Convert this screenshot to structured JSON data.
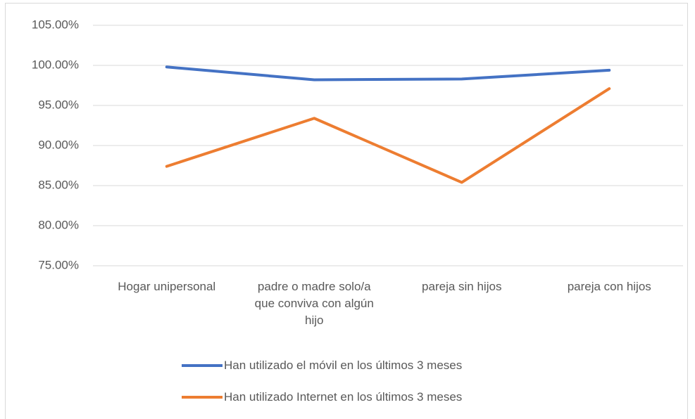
{
  "chart_data": {
    "type": "line",
    "categories": [
      "Hogar unipersonal",
      "padre o madre solo/a que conviva con algún hijo",
      "pareja sin hijos",
      "pareja con hijos"
    ],
    "series": [
      {
        "name": "Han utilizado el móvil en los últimos 3 meses",
        "color": "#4472c4",
        "values": [
          99.8,
          98.2,
          98.3,
          99.4
        ]
      },
      {
        "name": "Han utilizado Internet en los últimos 3 meses",
        "color": "#ed7d31",
        "values": [
          87.4,
          93.4,
          85.4,
          97.1
        ]
      }
    ],
    "ylim": [
      75,
      105
    ],
    "yticks": [
      {
        "value": 75,
        "label": "75.00%"
      },
      {
        "value": 80,
        "label": "80.00%"
      },
      {
        "value": 85,
        "label": "85.00%"
      },
      {
        "value": 90,
        "label": "90.00%"
      },
      {
        "value": 95,
        "label": "95.00%"
      },
      {
        "value": 100,
        "label": "100.00%"
      },
      {
        "value": 105,
        "label": "105.00%"
      }
    ],
    "grid": true,
    "legend": "bottom"
  }
}
